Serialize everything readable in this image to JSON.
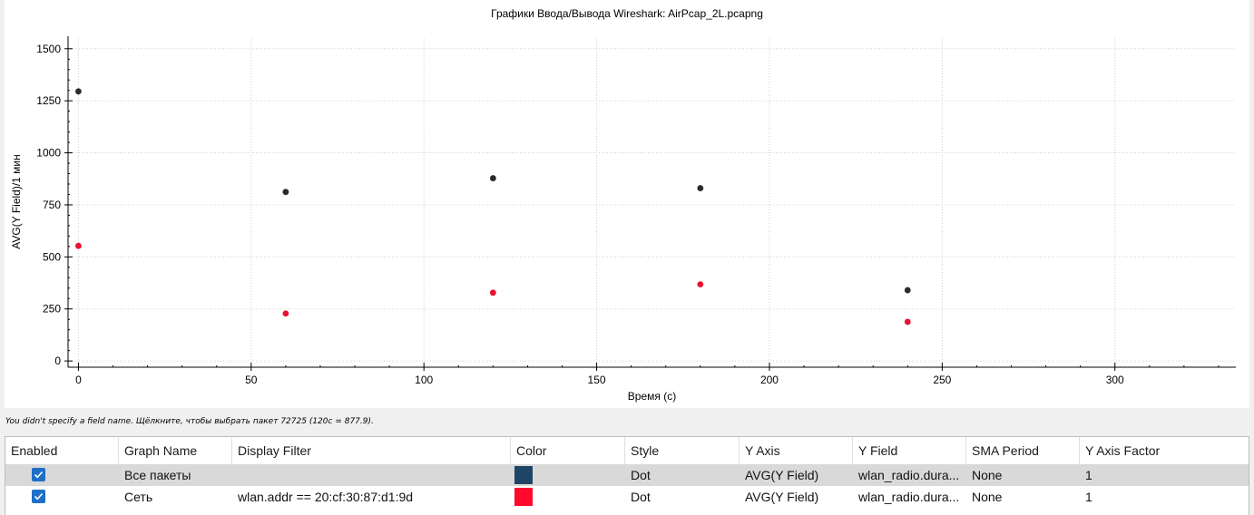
{
  "window": {
    "chart_title": "Графики Ввода/Вывода Wireshark: AirPcap_2L.pcapng"
  },
  "chart_data": {
    "type": "scatter",
    "title": "Графики Ввода/Вывода Wireshark: AirPcap_2L.pcapng",
    "xlabel": "Время (с)",
    "ylabel": "AVG(Y Field)/1 мин",
    "xlim": [
      -3,
      335
    ],
    "ylim": [
      -30,
      1560
    ],
    "x_ticks": [
      0,
      50,
      100,
      150,
      200,
      250,
      300
    ],
    "y_ticks": [
      0,
      250,
      500,
      750,
      1000,
      1250,
      1500
    ],
    "grid": true,
    "legend": "none",
    "series": [
      {
        "name": "Все пакеты",
        "color": "#2b2b2b",
        "points": [
          [
            0,
            1295
          ],
          [
            60,
            812
          ],
          [
            120,
            877.9
          ],
          [
            180,
            830
          ],
          [
            240,
            340
          ]
        ]
      },
      {
        "name": "Сеть",
        "color": "#e8142f",
        "points": [
          [
            0,
            553
          ],
          [
            60,
            228
          ],
          [
            120,
            328
          ],
          [
            180,
            368
          ],
          [
            240,
            188
          ]
        ]
      }
    ]
  },
  "status": {
    "text": "You didn't specify a field name. Щёлкните, чтобы выбрать пакет 72725 (120с = 877.9)."
  },
  "table": {
    "headers": [
      "Enabled",
      "Graph Name",
      "Display Filter",
      "Color",
      "Style",
      "Y Axis",
      "Y Field",
      "SMA Period",
      "Y Axis Factor"
    ],
    "rows": [
      {
        "enabled": true,
        "name": "Все пакеты",
        "filter": "",
        "color": "#1f4566",
        "style": "Dot",
        "y_axis": "AVG(Y Field)",
        "y_field": "wlan_radio.dura...",
        "sma": "None",
        "factor": "1"
      },
      {
        "enabled": true,
        "name": "Сеть",
        "filter": "wlan.addr == 20:cf:30:87:d1:9d",
        "color": "#ff0a2d",
        "style": "Dot",
        "y_axis": "AVG(Y Field)",
        "y_field": "wlan_radio.dura...",
        "sma": "None",
        "factor": "1"
      }
    ]
  }
}
